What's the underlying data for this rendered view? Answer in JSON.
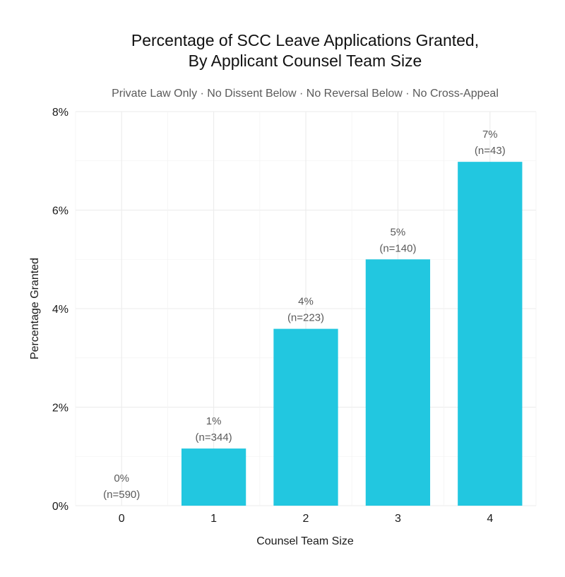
{
  "chart_data": {
    "type": "bar",
    "title_line1": "Percentage of SCC Leave Applications Granted,",
    "title_line2": "By Applicant Counsel Team Size",
    "subtitle": "Private Law Only · No Dissent Below · No Reversal Below · No Cross-Appeal",
    "xlabel": "Counsel Team Size",
    "ylabel": "Percentage Granted",
    "categories": [
      "0",
      "1",
      "2",
      "3",
      "4"
    ],
    "values": [
      0,
      1.16,
      3.59,
      5.0,
      6.98
    ],
    "value_labels": [
      "0%",
      "1%",
      "4%",
      "5%",
      "7%"
    ],
    "n_labels": [
      "(n=590)",
      "(n=344)",
      "(n=223)",
      "(n=140)",
      "(n=43)"
    ],
    "ylim": [
      0,
      8
    ],
    "y_ticks": [
      0,
      2,
      4,
      6,
      8
    ],
    "y_tick_labels": [
      "0%",
      "2%",
      "4%",
      "6%",
      "8%"
    ],
    "bar_color": "#22c7e0",
    "grid": true
  }
}
